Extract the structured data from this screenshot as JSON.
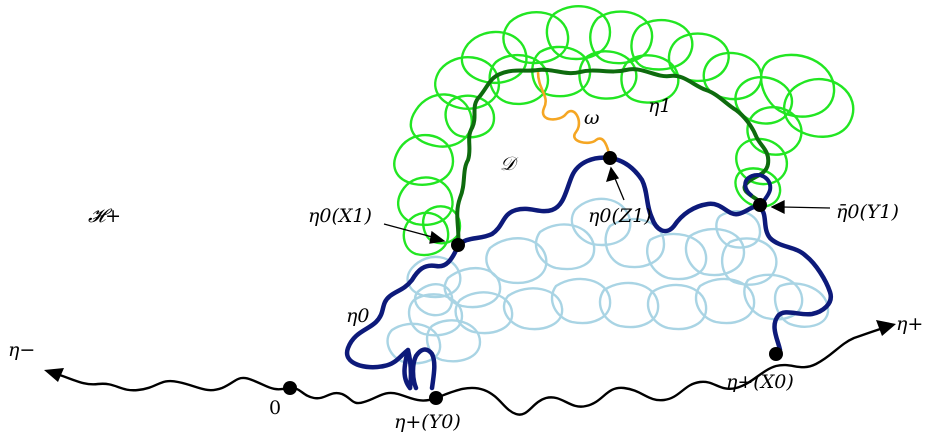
{
  "labels": {
    "H_plus": "𝓗+",
    "eta_minus": "η−",
    "eta_plus": "η+",
    "zero": "0",
    "eta0": "η0",
    "eta1": "η1",
    "omega": "ω",
    "D": "𝒟",
    "eta0_X1": "η0(X1)",
    "eta0_Z1": "η0(Z1)",
    "eta0bar_Y1": "η̄0(Y1)",
    "eta_plus_Y0": "η+(Y0)",
    "eta_plus_X0": "η+(X0)"
  },
  "colors": {
    "baseline": "#000000",
    "eta0_curve": "#0d1a7a",
    "eta0_loops": "#a9d4e4",
    "eta1_curve": "#0e6b0e",
    "eta1_loops": "#22e622",
    "omega": "#f5a623",
    "points": "#000000"
  }
}
